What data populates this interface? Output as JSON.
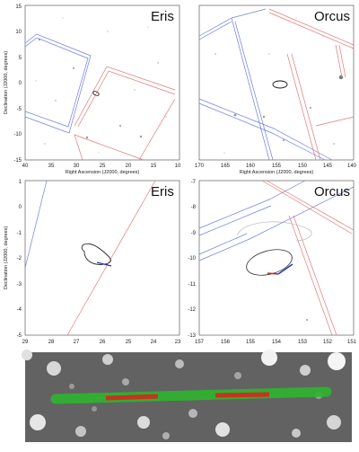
{
  "panels": [
    {
      "title": "Eris",
      "x_ticks": [
        "40",
        "35",
        "30",
        "25",
        "20",
        "15",
        "10"
      ],
      "y_ticks": [
        "15",
        "10",
        "5",
        "0",
        "-5",
        "-10",
        "-15"
      ],
      "x_label": "Right Ascension (J2000, degrees)",
      "y_label": "Declination (J2000, degrees)"
    },
    {
      "title": "Orcus",
      "x_ticks": [
        "170",
        "165",
        "160",
        "155",
        "150",
        "145",
        "140"
      ],
      "y_ticks": [],
      "x_label": "Right Ascension (J2000, degrees)",
      "y_label": ""
    },
    {
      "title": "Eris",
      "x_ticks": [
        "29",
        "28",
        "27",
        "26",
        "25",
        "24",
        "23"
      ],
      "y_ticks": [
        "1",
        "0",
        "-1",
        "-2",
        "-3",
        "-4",
        "-5"
      ],
      "x_label": "",
      "y_label": "Declination (J2000, degrees)"
    },
    {
      "title": "Orcus",
      "x_ticks": [
        "157",
        "156",
        "155",
        "154",
        "153",
        "152",
        "151"
      ],
      "y_ticks": [
        "-7",
        "-8",
        "-9",
        "-10",
        "-11",
        "-12",
        "-13"
      ],
      "x_label": "",
      "y_label": ""
    }
  ],
  "colors": {
    "blue_footprint": "#6f7fe0",
    "red_footprint": "#e07a7a",
    "track_green": "#2fb52f",
    "track_red": "#c8321e"
  }
}
